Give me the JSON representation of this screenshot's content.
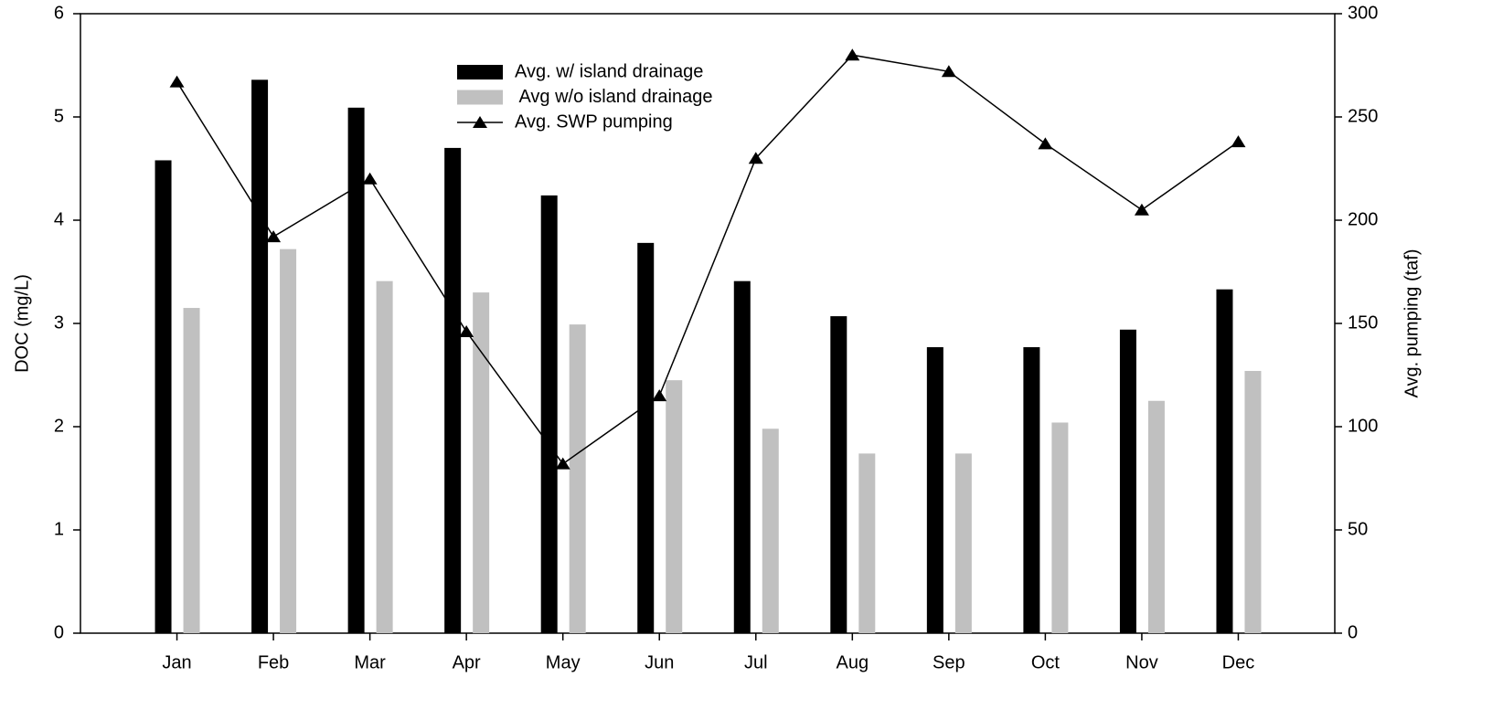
{
  "chart_data": {
    "type": "bar",
    "y_label": "DOC (mg/L)",
    "y2_label": "Avg. pumping (taf)",
    "categories": [
      "Jan",
      "Feb",
      "Mar",
      "Apr",
      "May",
      "Jun",
      "Jul",
      "Aug",
      "Sep",
      "Oct",
      "Nov",
      "Dec"
    ],
    "series": [
      {
        "name": "Avg. w/ island drainage",
        "type": "bar",
        "color": "#000000",
        "values": [
          4.58,
          5.36,
          5.09,
          4.7,
          4.24,
          3.78,
          3.41,
          3.07,
          2.77,
          2.77,
          2.94,
          3.33
        ]
      },
      {
        "name": " Avg w/o island drainage",
        "type": "bar",
        "color": "#c0c0c0",
        "values": [
          3.15,
          3.72,
          3.41,
          3.3,
          2.99,
          2.45,
          1.98,
          1.74,
          1.74,
          2.04,
          2.25,
          2.54
        ]
      },
      {
        "name": "Avg. SWP pumping",
        "type": "line",
        "axis": "y2",
        "color": "#000000",
        "marker": "triangle",
        "values": [
          267,
          192,
          220,
          146,
          82,
          115,
          230,
          280,
          272,
          237,
          205,
          238
        ]
      }
    ],
    "ylim": [
      0,
      6
    ],
    "yticks": [
      0,
      1,
      2,
      3,
      4,
      5,
      6
    ],
    "y2lim": [
      0,
      300
    ],
    "y2ticks": [
      0,
      50,
      100,
      150,
      200,
      250,
      300
    ],
    "grid": false,
    "legend": "top"
  }
}
